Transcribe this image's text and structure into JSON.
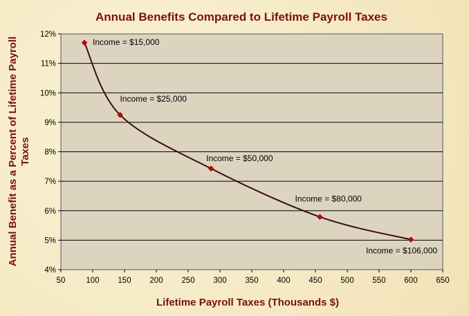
{
  "chart_data": {
    "type": "line",
    "title": "Annual Benefits Compared to Lifetime Payroll Taxes",
    "xlabel": "Lifetime  Payroll Taxes (Thousands $)",
    "ylabel_line1": "Annual Benefit as a Percent of Lifetime  Payroll",
    "ylabel_line2": "Taxes",
    "xlim": [
      50,
      650
    ],
    "ylim": [
      4,
      12
    ],
    "x_ticks": [
      50,
      100,
      150,
      200,
      250,
      300,
      350,
      400,
      450,
      500,
      550,
      600,
      650
    ],
    "y_ticks": [
      "4%",
      "5%",
      "6%",
      "7%",
      "8%",
      "9%",
      "10%",
      "11%",
      "12%"
    ],
    "grid": "horizontal",
    "colors": {
      "line": "#3a0e0e",
      "marker": "#c00000",
      "plot_bg": "#ddd4c0"
    },
    "points": [
      {
        "x": 87,
        "y": 11.7,
        "label": "Income = $15,000"
      },
      {
        "x": 143,
        "y": 9.25,
        "label": "Income = $25,000"
      },
      {
        "x": 286,
        "y": 7.43,
        "label": "Income = $50,000"
      },
      {
        "x": 457,
        "y": 5.79,
        "label": "Income = $80,000"
      },
      {
        "x": 600,
        "y": 5.02,
        "label": "Income = $106,000"
      }
    ]
  }
}
